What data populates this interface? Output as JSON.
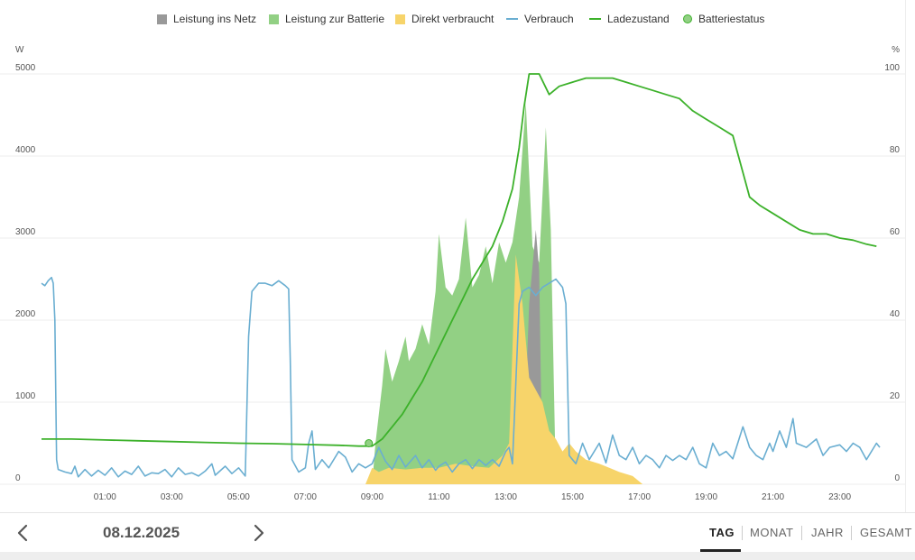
{
  "chart_data": {
    "type": "area",
    "title": "",
    "left_axis": {
      "unit": "W",
      "range": [
        0,
        5000
      ],
      "ticks": [
        0,
        1000,
        2000,
        3000,
        4000,
        5000
      ]
    },
    "right_axis": {
      "unit": "%",
      "range": [
        0,
        100
      ],
      "ticks": [
        0,
        20,
        40,
        60,
        80,
        100
      ]
    },
    "x_range_hours": [
      -0.9,
      24.2
    ],
    "x_ticks": [
      "01:00",
      "03:00",
      "05:00",
      "07:00",
      "09:00",
      "11:00",
      "13:00",
      "15:00",
      "17:00",
      "19:00",
      "21:00",
      "23:00"
    ],
    "legend": [
      {
        "name": "Leistung ins Netz",
        "color": "#999999",
        "kind": "square"
      },
      {
        "name": "Leistung zur Batterie",
        "color": "#92d084",
        "kind": "square"
      },
      {
        "name": "Direkt verbraucht",
        "color": "#f7d46a",
        "kind": "square"
      },
      {
        "name": "Verbrauch",
        "color": "#6aaed1",
        "kind": "line"
      },
      {
        "name": "Ladezustand",
        "color": "#3cb12a",
        "kind": "line"
      },
      {
        "name": "Batteriestatus",
        "color": "#92d084",
        "kind": "dot"
      }
    ],
    "series": [
      {
        "name": "Verbrauch",
        "axis": "left",
        "type": "line",
        "points": [
          [
            -0.9,
            2450
          ],
          [
            -0.8,
            2420
          ],
          [
            -0.7,
            2480
          ],
          [
            -0.6,
            2520
          ],
          [
            -0.55,
            2450
          ],
          [
            -0.5,
            2000
          ],
          [
            -0.45,
            300
          ],
          [
            -0.4,
            180
          ],
          [
            -0.2,
            150
          ],
          [
            0,
            130
          ],
          [
            0.1,
            220
          ],
          [
            0.2,
            90
          ],
          [
            0.4,
            180
          ],
          [
            0.6,
            100
          ],
          [
            0.8,
            170
          ],
          [
            1,
            110
          ],
          [
            1.2,
            200
          ],
          [
            1.4,
            90
          ],
          [
            1.6,
            160
          ],
          [
            1.8,
            120
          ],
          [
            2,
            220
          ],
          [
            2.2,
            100
          ],
          [
            2.4,
            140
          ],
          [
            2.6,
            130
          ],
          [
            2.8,
            180
          ],
          [
            3,
            90
          ],
          [
            3.2,
            200
          ],
          [
            3.4,
            120
          ],
          [
            3.6,
            140
          ],
          [
            3.8,
            100
          ],
          [
            4,
            160
          ],
          [
            4.2,
            250
          ],
          [
            4.3,
            110
          ],
          [
            4.6,
            220
          ],
          [
            4.8,
            130
          ],
          [
            5,
            200
          ],
          [
            5.2,
            100
          ],
          [
            5.3,
            1800
          ],
          [
            5.4,
            2350
          ],
          [
            5.6,
            2450
          ],
          [
            5.8,
            2450
          ],
          [
            6,
            2420
          ],
          [
            6.2,
            2480
          ],
          [
            6.4,
            2420
          ],
          [
            6.5,
            2380
          ],
          [
            6.55,
            1500
          ],
          [
            6.6,
            300
          ],
          [
            6.8,
            150
          ],
          [
            7.0,
            200
          ],
          [
            7.1,
            500
          ],
          [
            7.2,
            650
          ],
          [
            7.3,
            180
          ],
          [
            7.5,
            300
          ],
          [
            7.7,
            200
          ],
          [
            8,
            400
          ],
          [
            8.2,
            330
          ],
          [
            8.4,
            150
          ],
          [
            8.6,
            250
          ],
          [
            8.8,
            200
          ],
          [
            9.0,
            250
          ],
          [
            9.2,
            450
          ],
          [
            9.4,
            280
          ],
          [
            9.6,
            180
          ],
          [
            9.8,
            350
          ],
          [
            10,
            210
          ],
          [
            10.3,
            350
          ],
          [
            10.5,
            200
          ],
          [
            10.7,
            300
          ],
          [
            10.9,
            170
          ],
          [
            11,
            220
          ],
          [
            11.2,
            270
          ],
          [
            11.4,
            150
          ],
          [
            11.6,
            250
          ],
          [
            11.8,
            300
          ],
          [
            12,
            190
          ],
          [
            12.2,
            300
          ],
          [
            12.4,
            230
          ],
          [
            12.6,
            300
          ],
          [
            12.8,
            220
          ],
          [
            13,
            400
          ],
          [
            13.1,
            450
          ],
          [
            13.2,
            250
          ],
          [
            13.4,
            2200
          ],
          [
            13.5,
            2350
          ],
          [
            13.7,
            2400
          ],
          [
            13.9,
            2300
          ],
          [
            14.1,
            2400
          ],
          [
            14.3,
            2450
          ],
          [
            14.5,
            2500
          ],
          [
            14.7,
            2400
          ],
          [
            14.8,
            2200
          ],
          [
            14.9,
            350
          ],
          [
            15.1,
            250
          ],
          [
            15.3,
            500
          ],
          [
            15.5,
            300
          ],
          [
            15.8,
            500
          ],
          [
            16,
            260
          ],
          [
            16.2,
            600
          ],
          [
            16.4,
            350
          ],
          [
            16.6,
            300
          ],
          [
            16.8,
            450
          ],
          [
            17,
            250
          ],
          [
            17.2,
            350
          ],
          [
            17.4,
            300
          ],
          [
            17.6,
            200
          ],
          [
            17.8,
            350
          ],
          [
            18,
            290
          ],
          [
            18.2,
            350
          ],
          [
            18.4,
            300
          ],
          [
            18.6,
            450
          ],
          [
            18.8,
            250
          ],
          [
            19,
            200
          ],
          [
            19.2,
            500
          ],
          [
            19.4,
            350
          ],
          [
            19.6,
            400
          ],
          [
            19.8,
            310
          ],
          [
            20.1,
            700
          ],
          [
            20.3,
            450
          ],
          [
            20.5,
            350
          ],
          [
            20.7,
            300
          ],
          [
            20.9,
            500
          ],
          [
            21,
            400
          ],
          [
            21.2,
            650
          ],
          [
            21.4,
            450
          ],
          [
            21.6,
            800
          ],
          [
            21.7,
            500
          ],
          [
            22,
            450
          ],
          [
            22.3,
            550
          ],
          [
            22.5,
            350
          ],
          [
            22.7,
            450
          ],
          [
            23,
            480
          ],
          [
            23.2,
            400
          ],
          [
            23.4,
            500
          ],
          [
            23.6,
            450
          ],
          [
            23.8,
            300
          ],
          [
            24.1,
            500
          ],
          [
            24.2,
            450
          ]
        ]
      },
      {
        "name": "Ladezustand",
        "axis": "right",
        "type": "line",
        "points": [
          [
            -0.9,
            11
          ],
          [
            0,
            11
          ],
          [
            1,
            10.8
          ],
          [
            2,
            10.6
          ],
          [
            3,
            10.4
          ],
          [
            4,
            10.2
          ],
          [
            5,
            10
          ],
          [
            6,
            9.9
          ],
          [
            7,
            9.7
          ],
          [
            8,
            9.5
          ],
          [
            8.6,
            9.3
          ],
          [
            9,
            9.3
          ],
          [
            9.3,
            11
          ],
          [
            9.6,
            14
          ],
          [
            9.9,
            17
          ],
          [
            10.2,
            21
          ],
          [
            10.5,
            25
          ],
          [
            10.8,
            30
          ],
          [
            11.1,
            35
          ],
          [
            11.4,
            40
          ],
          [
            11.7,
            45
          ],
          [
            12.0,
            50
          ],
          [
            12.3,
            54
          ],
          [
            12.6,
            58
          ],
          [
            12.9,
            64
          ],
          [
            13.2,
            72
          ],
          [
            13.4,
            82
          ],
          [
            13.55,
            92
          ],
          [
            13.7,
            100
          ],
          [
            14.0,
            100
          ],
          [
            14.3,
            95
          ],
          [
            14.6,
            97
          ],
          [
            15.0,
            98
          ],
          [
            15.4,
            99
          ],
          [
            15.8,
            99
          ],
          [
            16.2,
            99
          ],
          [
            16.6,
            98
          ],
          [
            17.0,
            97
          ],
          [
            17.4,
            96
          ],
          [
            17.8,
            95
          ],
          [
            18.2,
            94
          ],
          [
            18.6,
            91
          ],
          [
            19.0,
            89
          ],
          [
            19.4,
            87
          ],
          [
            19.8,
            85
          ],
          [
            20.1,
            76
          ],
          [
            20.3,
            70
          ],
          [
            20.6,
            68
          ],
          [
            21.0,
            66
          ],
          [
            21.4,
            64
          ],
          [
            21.8,
            62
          ],
          [
            22.2,
            61
          ],
          [
            22.6,
            61
          ],
          [
            23.0,
            60
          ],
          [
            23.4,
            59.5
          ],
          [
            23.8,
            58.5
          ],
          [
            24.1,
            58
          ]
        ]
      },
      {
        "name": "Leistung zur Batterie",
        "axis": "left",
        "type": "area",
        "points": [
          [
            9.0,
            0
          ],
          [
            9.1,
            500
          ],
          [
            9.3,
            1200
          ],
          [
            9.4,
            1650
          ],
          [
            9.6,
            1250
          ],
          [
            9.8,
            1500
          ],
          [
            10.0,
            1800
          ],
          [
            10.1,
            1500
          ],
          [
            10.3,
            1650
          ],
          [
            10.5,
            1950
          ],
          [
            10.7,
            1700
          ],
          [
            10.9,
            2350
          ],
          [
            11.0,
            3050
          ],
          [
            11.2,
            2400
          ],
          [
            11.4,
            2300
          ],
          [
            11.6,
            2500
          ],
          [
            11.8,
            3250
          ],
          [
            12.0,
            2400
          ],
          [
            12.2,
            2550
          ],
          [
            12.4,
            2900
          ],
          [
            12.6,
            2450
          ],
          [
            12.8,
            2950
          ],
          [
            13.0,
            2700
          ],
          [
            13.2,
            2950
          ],
          [
            13.4,
            3500
          ],
          [
            13.6,
            4650
          ],
          [
            13.8,
            2900
          ],
          [
            14.0,
            2700
          ],
          [
            14.2,
            4350
          ],
          [
            14.35,
            3100
          ],
          [
            14.5,
            0
          ]
        ]
      },
      {
        "name": "Leistung ins Netz",
        "axis": "left",
        "type": "area",
        "points": [
          [
            13.5,
            0
          ],
          [
            13.7,
            2200
          ],
          [
            13.9,
            3100
          ],
          [
            14.0,
            2600
          ],
          [
            14.1,
            0
          ]
        ]
      },
      {
        "name": "Direkt verbraucht",
        "axis": "left",
        "type": "area",
        "points": [
          [
            8.8,
            0
          ],
          [
            9.0,
            200
          ],
          [
            9.2,
            150
          ],
          [
            9.5,
            200
          ],
          [
            10,
            180
          ],
          [
            10.5,
            200
          ],
          [
            11,
            200
          ],
          [
            11.5,
            250
          ],
          [
            12,
            220
          ],
          [
            12.5,
            200
          ],
          [
            12.9,
            350
          ],
          [
            13.1,
            500
          ],
          [
            13.3,
            2800
          ],
          [
            13.5,
            2200
          ],
          [
            13.7,
            1300
          ],
          [
            13.9,
            1150
          ],
          [
            14.1,
            1000
          ],
          [
            14.3,
            650
          ],
          [
            14.5,
            550
          ],
          [
            14.7,
            400
          ],
          [
            14.9,
            500
          ],
          [
            15.1,
            400
          ],
          [
            15.4,
            300
          ],
          [
            15.8,
            250
          ],
          [
            16.1,
            200
          ],
          [
            16.4,
            150
          ],
          [
            16.8,
            100
          ],
          [
            17.1,
            0
          ]
        ]
      }
    ],
    "battery_status_marker": {
      "hour": 8.9,
      "value_percent": 10
    }
  },
  "footer": {
    "date": "08.12.2025",
    "tabs": [
      "TAG",
      "MONAT",
      "JAHR",
      "GESAMT"
    ],
    "active_tab": "TAG"
  }
}
